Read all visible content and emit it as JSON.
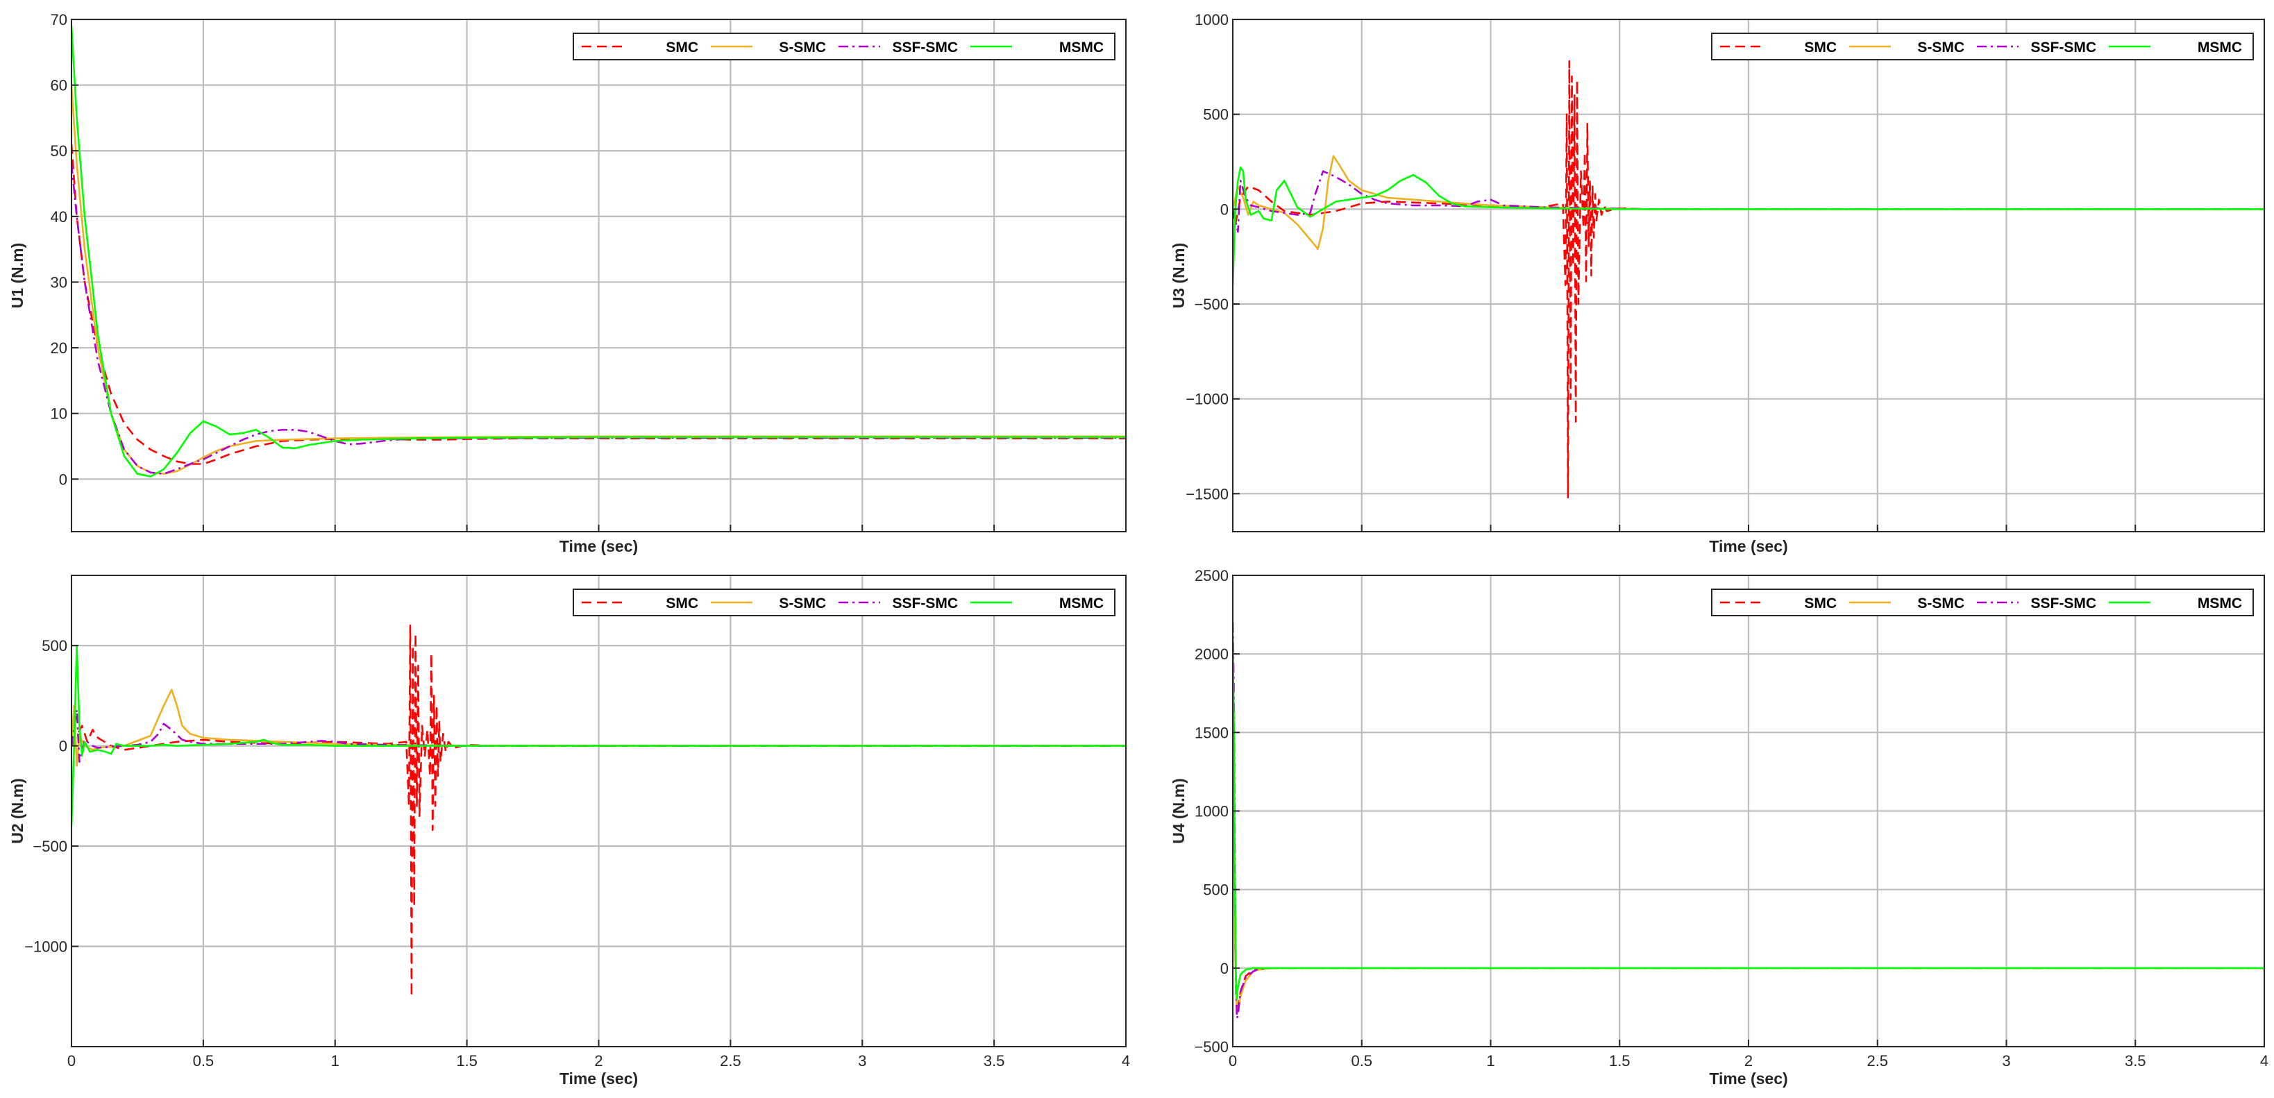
{
  "figure": {
    "series_styles": [
      {
        "name": "SMC",
        "color": "#ff0000",
        "dash": "dashed"
      },
      {
        "name": "S-SMC",
        "color": "#edb120",
        "dash": "solid"
      },
      {
        "name": "SSF-SMC",
        "color": "#b000d0",
        "dash": "dashdot"
      },
      {
        "name": "MSMC",
        "color": "#00ff00",
        "dash": "solid"
      }
    ]
  },
  "chart_data": [
    {
      "type": "line",
      "ylabel": "U1 (N.m)",
      "xlabel": "Time (sec)",
      "xlim": [
        0,
        4
      ],
      "ylim": [
        -8,
        70
      ],
      "xticks": [],
      "yticks": [
        0,
        10,
        20,
        30,
        40,
        50,
        60,
        70
      ],
      "grid_xticks": [
        0,
        0.5,
        1,
        1.5,
        2,
        2.5,
        3,
        3.5,
        4
      ],
      "legend": "top-right",
      "series": [
        {
          "name": "SMC",
          "x": [
            0,
            0.02,
            0.05,
            0.1,
            0.15,
            0.2,
            0.25,
            0.3,
            0.35,
            0.4,
            0.45,
            0.5,
            0.55,
            0.6,
            0.7,
            0.8,
            0.9,
            1.0,
            1.1,
            1.2,
            1.3,
            1.4,
            1.5,
            1.7,
            2.0,
            3.0,
            4.0
          ],
          "y": [
            51,
            40,
            30,
            20,
            13,
            8.5,
            6,
            4.5,
            3.5,
            2.7,
            2.3,
            2.3,
            3,
            3.8,
            5,
            5.8,
            6,
            6.1,
            6.2,
            6.1,
            6,
            6,
            6.1,
            6.2,
            6.2,
            6.2,
            6.2
          ]
        },
        {
          "name": "S-SMC",
          "x": [
            0,
            0.02,
            0.05,
            0.1,
            0.15,
            0.2,
            0.25,
            0.3,
            0.35,
            0.4,
            0.45,
            0.5,
            0.55,
            0.6,
            0.7,
            0.8,
            0.9,
            1.0,
            1.2,
            1.5,
            2.0,
            3.0,
            4.0
          ],
          "y": [
            60,
            48,
            35,
            20,
            10,
            4.5,
            2,
            1,
            0.8,
            1.2,
            2.2,
            3.3,
            4.3,
            5,
            5.8,
            6,
            6.1,
            6.2,
            6.3,
            6.4,
            6.5,
            6.5,
            6.5
          ]
        },
        {
          "name": "SSF-SMC",
          "x": [
            0,
            0.02,
            0.05,
            0.1,
            0.15,
            0.2,
            0.25,
            0.3,
            0.35,
            0.4,
            0.45,
            0.5,
            0.55,
            0.6,
            0.65,
            0.7,
            0.75,
            0.8,
            0.85,
            0.9,
            0.95,
            1.0,
            1.05,
            1.1,
            1.2,
            1.3,
            1.5,
            2.0,
            3.0,
            4.0
          ],
          "y": [
            48,
            40,
            30,
            18,
            10,
            4.5,
            2,
            1,
            0.8,
            1.5,
            2.3,
            3,
            4,
            5,
            6,
            6.8,
            7.3,
            7.5,
            7.5,
            7.2,
            6.5,
            5.8,
            5.3,
            5.4,
            5.9,
            6.2,
            6.2,
            6.3,
            6.3,
            6.3
          ]
        },
        {
          "name": "MSMC",
          "x": [
            0,
            0.02,
            0.05,
            0.1,
            0.15,
            0.2,
            0.25,
            0.3,
            0.35,
            0.4,
            0.45,
            0.5,
            0.55,
            0.6,
            0.65,
            0.7,
            0.75,
            0.8,
            0.85,
            0.9,
            1.0,
            1.1,
            1.2,
            1.3,
            1.5,
            2.0,
            3.0,
            4.0
          ],
          "y": [
            69,
            55,
            40,
            22,
            10,
            3.5,
            0.8,
            0.4,
            1.5,
            4,
            7,
            8.8,
            8,
            6.8,
            7,
            7.5,
            6.3,
            4.8,
            4.7,
            5.2,
            5.8,
            6,
            6.1,
            6.2,
            6.3,
            6.4,
            6.4,
            6.4
          ]
        }
      ]
    },
    {
      "type": "line",
      "ylabel": "U3 (N.m)",
      "xlabel": "Time (sec)",
      "xlim": [
        0,
        4
      ],
      "ylim": [
        -1700,
        1000
      ],
      "xticks": [],
      "yticks": [
        -1500,
        -1000,
        -500,
        0,
        500,
        1000
      ],
      "grid_xticks": [
        0,
        0.5,
        1,
        1.5,
        2,
        2.5,
        3,
        3.5,
        4
      ],
      "legend": "top-right",
      "series": [
        {
          "name": "SMC",
          "x": [
            0,
            0.01,
            0.03,
            0.06,
            0.1,
            0.15,
            0.2,
            0.3,
            0.4,
            0.5,
            0.6,
            0.8,
            1.0,
            1.2,
            1.28,
            1.29,
            1.295,
            1.3,
            1.305,
            1.31,
            1.315,
            1.32,
            1.325,
            1.33,
            1.335,
            1.34,
            1.35,
            1.36,
            1.365,
            1.37,
            1.375,
            1.38,
            1.385,
            1.39,
            1.395,
            1.4,
            1.405,
            1.41,
            1.42,
            1.43,
            1.44,
            1.45,
            1.5,
            1.6,
            2.0,
            4.0
          ],
          "y": [
            0,
            -80,
            60,
            120,
            100,
            40,
            -10,
            -30,
            -10,
            30,
            40,
            30,
            20,
            10,
            30,
            -400,
            500,
            -1520,
            780,
            -1000,
            700,
            -300,
            600,
            -1120,
            680,
            -500,
            200,
            -100,
            300,
            -380,
            450,
            -200,
            150,
            -350,
            120,
            -150,
            80,
            -60,
            50,
            -30,
            15,
            -10,
            5,
            0,
            0,
            0
          ]
        },
        {
          "name": "S-SMC",
          "x": [
            0,
            0.02,
            0.04,
            0.06,
            0.08,
            0.1,
            0.15,
            0.2,
            0.25,
            0.3,
            0.33,
            0.35,
            0.37,
            0.39,
            0.41,
            0.45,
            0.5,
            0.6,
            0.8,
            1.0,
            1.2,
            1.4,
            1.6,
            2.0,
            4.0
          ],
          "y": [
            0,
            120,
            60,
            -30,
            40,
            20,
            0,
            -20,
            -80,
            -160,
            -210,
            -100,
            150,
            280,
            240,
            150,
            100,
            60,
            40,
            20,
            10,
            5,
            0,
            0,
            0
          ]
        },
        {
          "name": "SSF-SMC",
          "x": [
            0,
            0.02,
            0.03,
            0.05,
            0.07,
            0.1,
            0.15,
            0.2,
            0.25,
            0.3,
            0.32,
            0.35,
            0.4,
            0.45,
            0.5,
            0.55,
            0.6,
            0.7,
            0.8,
            0.9,
            0.95,
            1.0,
            1.05,
            1.2,
            1.4,
            1.6,
            2.0,
            4.0
          ],
          "y": [
            0,
            -120,
            150,
            60,
            20,
            10,
            -10,
            -20,
            -30,
            -20,
            80,
            200,
            170,
            130,
            80,
            50,
            30,
            20,
            20,
            15,
            40,
            50,
            20,
            10,
            5,
            0,
            0,
            0
          ]
        },
        {
          "name": "MSMC",
          "x": [
            0,
            0.01,
            0.02,
            0.03,
            0.04,
            0.05,
            0.07,
            0.1,
            0.12,
            0.15,
            0.17,
            0.2,
            0.25,
            0.3,
            0.35,
            0.4,
            0.45,
            0.5,
            0.55,
            0.6,
            0.65,
            0.7,
            0.75,
            0.8,
            0.85,
            0.9,
            1.0,
            1.2,
            1.5,
            2.0,
            4.0
          ],
          "y": [
            -400,
            0,
            150,
            220,
            200,
            50,
            -30,
            -10,
            -50,
            -60,
            100,
            150,
            10,
            -40,
            0,
            40,
            50,
            60,
            70,
            100,
            150,
            180,
            140,
            70,
            30,
            15,
            10,
            5,
            0,
            0,
            0
          ]
        }
      ]
    },
    {
      "type": "line",
      "ylabel": "U2 (N.m)",
      "xlabel": "Time (sec)",
      "xlim": [
        0,
        4
      ],
      "ylim": [
        -1500,
        850
      ],
      "xticks": [
        0,
        0.5,
        1,
        1.5,
        2,
        2.5,
        3,
        3.5,
        4
      ],
      "yticks": [
        -1000,
        -500,
        0,
        500
      ],
      "grid_xticks": [
        0,
        0.5,
        1,
        1.5,
        2,
        2.5,
        3,
        3.5,
        4
      ],
      "legend": "top-right",
      "series": [
        {
          "name": "SMC",
          "x": [
            0,
            0.02,
            0.04,
            0.06,
            0.08,
            0.1,
            0.15,
            0.2,
            0.3,
            0.4,
            0.5,
            0.6,
            0.8,
            1.0,
            1.2,
            1.27,
            1.28,
            1.285,
            1.29,
            1.295,
            1.3,
            1.305,
            1.31,
            1.315,
            1.32,
            1.33,
            1.34,
            1.35,
            1.36,
            1.365,
            1.37,
            1.375,
            1.38,
            1.385,
            1.39,
            1.395,
            1.4,
            1.41,
            1.42,
            1.43,
            1.45,
            1.5,
            1.6,
            1.8,
            2.0,
            4.0
          ],
          "y": [
            0,
            50,
            100,
            20,
            80,
            40,
            0,
            -20,
            0,
            20,
            30,
            20,
            10,
            20,
            10,
            20,
            -300,
            600,
            -1250,
            500,
            -800,
            560,
            -300,
            400,
            -350,
            100,
            -50,
            80,
            -150,
            460,
            -420,
            250,
            -300,
            200,
            -150,
            120,
            -80,
            60,
            -30,
            20,
            -10,
            5,
            0,
            0,
            0,
            0
          ]
        },
        {
          "name": "S-SMC",
          "x": [
            0,
            0.01,
            0.02,
            0.03,
            0.05,
            0.08,
            0.1,
            0.15,
            0.2,
            0.3,
            0.35,
            0.38,
            0.4,
            0.42,
            0.45,
            0.5,
            0.6,
            0.8,
            1.0,
            1.2,
            1.4,
            1.6,
            1.75,
            2.0,
            4.0
          ],
          "y": [
            0,
            200,
            -100,
            50,
            0,
            -20,
            -10,
            -5,
            0,
            50,
            200,
            280,
            200,
            100,
            60,
            40,
            30,
            20,
            10,
            5,
            2,
            0,
            0,
            0,
            0
          ]
        },
        {
          "name": "SSF-SMC",
          "x": [
            0,
            0.02,
            0.03,
            0.05,
            0.08,
            0.1,
            0.15,
            0.2,
            0.25,
            0.3,
            0.33,
            0.35,
            0.38,
            0.42,
            0.45,
            0.5,
            0.6,
            0.8,
            0.95,
            1.0,
            1.05,
            1.2,
            1.5,
            2.0,
            4.0
          ],
          "y": [
            0,
            180,
            -80,
            30,
            0,
            -10,
            -5,
            0,
            5,
            20,
            60,
            110,
            80,
            30,
            20,
            10,
            10,
            10,
            25,
            20,
            10,
            5,
            0,
            0,
            0
          ]
        },
        {
          "name": "MSMC",
          "x": [
            0,
            0.01,
            0.02,
            0.03,
            0.04,
            0.05,
            0.07,
            0.1,
            0.13,
            0.15,
            0.17,
            0.2,
            0.25,
            0.3,
            0.35,
            0.4,
            0.5,
            0.6,
            0.7,
            0.73,
            0.76,
            0.8,
            0.9,
            1.0,
            1.2,
            1.5,
            2.0,
            4.0
          ],
          "y": [
            -400,
            0,
            500,
            100,
            -50,
            20,
            -30,
            -20,
            -30,
            -40,
            10,
            0,
            0,
            0,
            5,
            0,
            5,
            10,
            20,
            30,
            15,
            5,
            5,
            0,
            0,
            0,
            0,
            0
          ]
        }
      ]
    },
    {
      "type": "line",
      "ylabel": "U4 (N.m)",
      "xlabel": "Time (sec)",
      "xlim": [
        0,
        4
      ],
      "ylim": [
        -500,
        2500
      ],
      "xticks": [
        0,
        0.5,
        1,
        1.5,
        2,
        2.5,
        3,
        3.5,
        4
      ],
      "yticks": [
        -500,
        0,
        500,
        1000,
        1500,
        2000,
        2500
      ],
      "grid_xticks": [
        0,
        0.5,
        1,
        1.5,
        2,
        2.5,
        3,
        3.5,
        4
      ],
      "legend": "top-right",
      "series": [
        {
          "name": "SMC",
          "x": [
            0,
            0.005,
            0.01,
            0.015,
            0.02,
            0.03,
            0.05,
            0.08,
            0.1,
            0.15,
            0.2,
            0.5,
            1.0,
            4.0
          ],
          "y": [
            2000,
            1000,
            100,
            -200,
            -250,
            -150,
            -50,
            -10,
            0,
            0,
            0,
            0,
            0,
            0
          ]
        },
        {
          "name": "S-SMC",
          "x": [
            0,
            0.005,
            0.01,
            0.015,
            0.02,
            0.03,
            0.05,
            0.08,
            0.1,
            0.15,
            0.2,
            0.5,
            1.0,
            4.0
          ],
          "y": [
            1950,
            900,
            50,
            -250,
            -280,
            -180,
            -80,
            -20,
            -10,
            0,
            0,
            0,
            0,
            0
          ]
        },
        {
          "name": "SSF-SMC",
          "x": [
            0,
            0.004,
            0.008,
            0.012,
            0.016,
            0.02,
            0.03,
            0.05,
            0.08,
            0.1,
            0.15,
            0.2,
            0.5,
            1.0,
            4.0
          ],
          "y": [
            2200,
            1800,
            800,
            -100,
            -320,
            -300,
            -150,
            -60,
            -20,
            -5,
            0,
            0,
            0,
            0,
            0
          ]
        },
        {
          "name": "MSMC",
          "x": [
            0,
            0.004,
            0.008,
            0.012,
            0.016,
            0.02,
            0.03,
            0.05,
            0.08,
            0.1,
            0.15,
            0.2,
            0.5,
            1.0,
            4.0
          ],
          "y": [
            2100,
            1600,
            600,
            -50,
            -200,
            -120,
            -40,
            -10,
            0,
            0,
            0,
            0,
            0,
            0,
            0
          ]
        }
      ]
    }
  ]
}
